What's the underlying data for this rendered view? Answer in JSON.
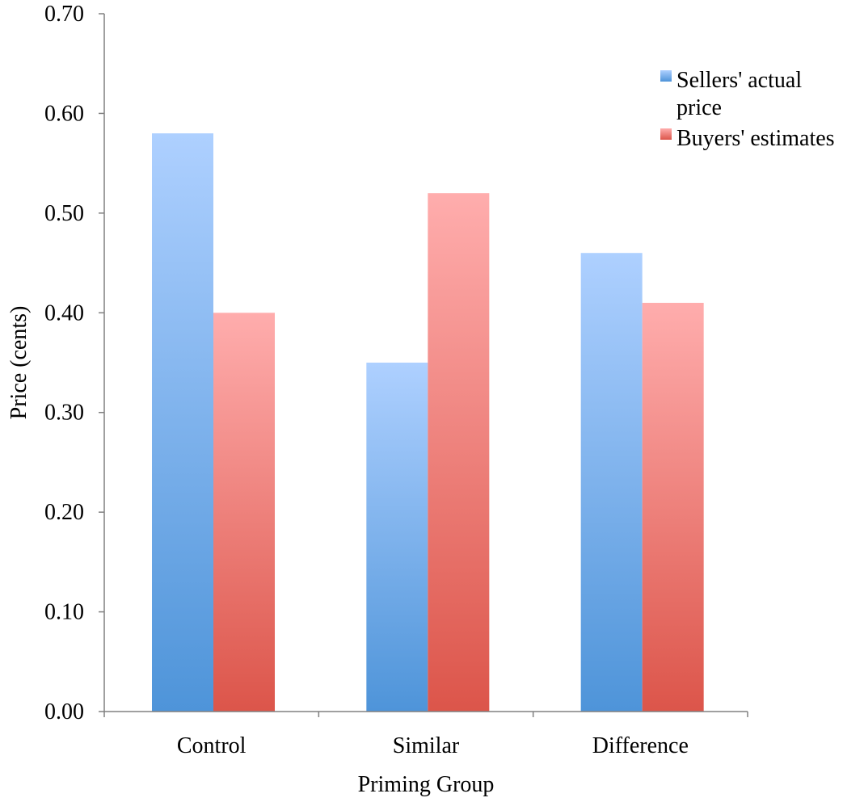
{
  "chart_data": {
    "type": "bar",
    "title": "",
    "xlabel": "Priming Group",
    "ylabel": "Price (cents)",
    "categories": [
      "Control",
      "Similar",
      "Difference"
    ],
    "series": [
      {
        "name": "Sellers' actual price",
        "values": [
          0.58,
          0.35,
          0.46
        ]
      },
      {
        "name": "Buyers' estimates",
        "values": [
          0.4,
          0.52,
          0.41
        ]
      }
    ],
    "ylim": [
      0,
      0.7
    ],
    "yticks": [
      "0.00",
      "0.10",
      "0.20",
      "0.30",
      "0.40",
      "0.50",
      "0.60",
      "0.70"
    ],
    "grid": false,
    "legend_position": "top-right",
    "legend_labels": [
      [
        "Sellers' actual",
        "price"
      ],
      [
        "Buyers' estimates"
      ]
    ],
    "colors": {
      "series_0_top": "#aed0ff",
      "series_0_bottom": "#4e94d9",
      "series_1_top": "#ffadad",
      "series_1_bottom": "#dc554a",
      "axis": "#808080"
    }
  }
}
